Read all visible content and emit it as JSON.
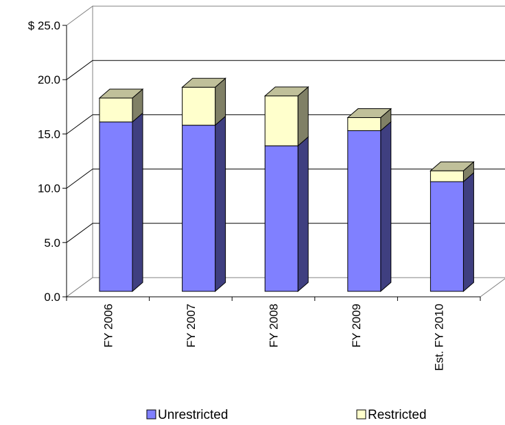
{
  "chart_data": {
    "type": "bar",
    "stacked": true,
    "three_d": true,
    "categories": [
      "FY 2006",
      "FY 2007",
      "FY 2008",
      "FY 2009",
      "Est. FY 2010"
    ],
    "series": [
      {
        "name": "Unrestricted",
        "values": [
          15.6,
          15.3,
          13.4,
          14.8,
          10.1
        ],
        "color": "#8080ff",
        "side_color": "#3f3f80",
        "top_color": "#b3b3ff"
      },
      {
        "name": "Restricted",
        "values": [
          2.2,
          3.5,
          4.6,
          1.2,
          1.0
        ],
        "color": "#ffffcc",
        "side_color": "#808066",
        "top_color": "#c0c09a"
      }
    ],
    "y_tick_labels": [
      "0.0",
      "5.0",
      "10.0",
      "15.0",
      "20.0",
      "$ 25.0"
    ],
    "y_ticks": [
      0,
      5,
      10,
      15,
      20,
      25
    ],
    "ylim": [
      0,
      25
    ],
    "grid": true,
    "legend_position": "bottom",
    "title": "",
    "xlabel": "",
    "ylabel": ""
  }
}
